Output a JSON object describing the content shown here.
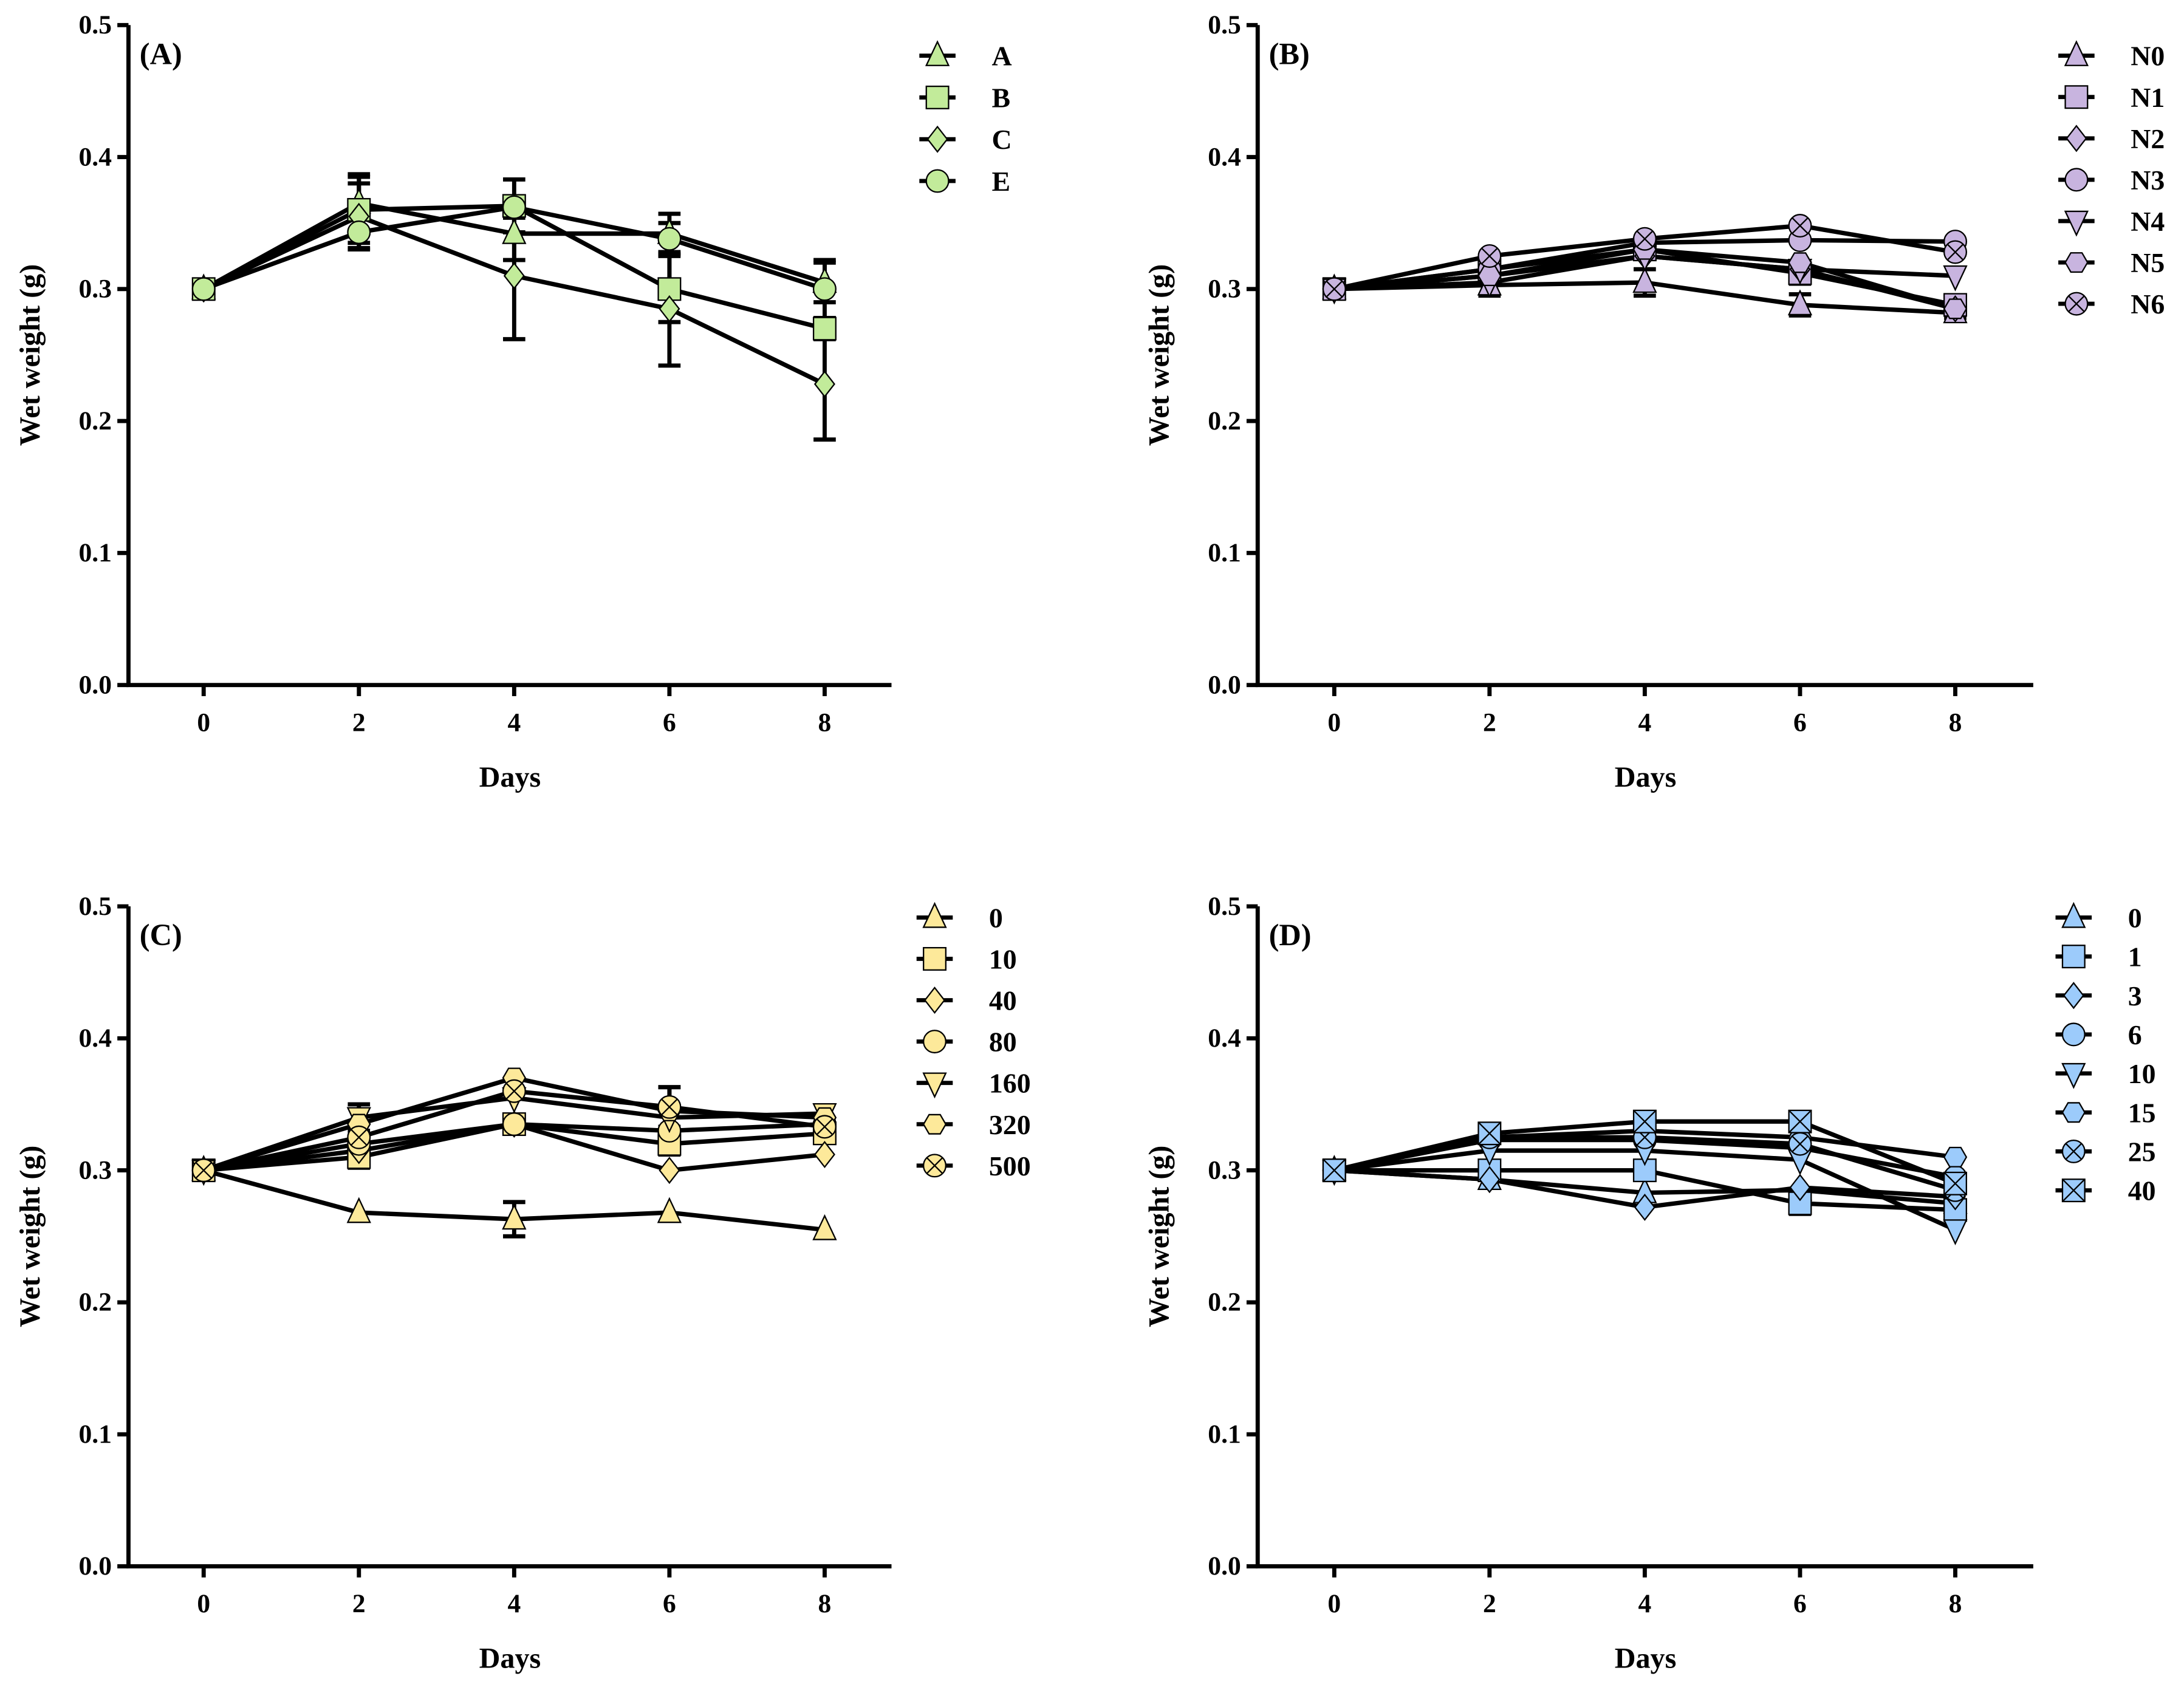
{
  "chart_data": [
    {
      "type": "line",
      "panel_label": "(A)",
      "xlabel": "Days",
      "ylabel": "Wet weight (g)",
      "x": [
        0,
        2,
        4,
        6,
        8
      ],
      "xticks": [
        "0",
        "2",
        "4",
        "6",
        "8"
      ],
      "yticks": [
        "0.0",
        "0.1",
        "0.2",
        "0.3",
        "0.4",
        "0.5"
      ],
      "ylim": [
        0,
        0.5
      ],
      "xlim": [
        -1,
        9
      ],
      "legend_position": "top-right",
      "color": "#c2eb9a",
      "series": [
        {
          "name": "A",
          "marker": "triangle",
          "values": [
            0.3,
            0.365,
            0.342,
            0.342,
            0.305
          ],
          "error": [
            0,
            0.022,
            0.02,
            0.015,
            0.015
          ]
        },
        {
          "name": "B",
          "marker": "square",
          "values": [
            0.3,
            0.36,
            0.363,
            0.3,
            0.27
          ],
          "error": [
            0,
            0.025,
            0.02,
            0.025,
            0.008
          ]
        },
        {
          "name": "C",
          "marker": "diamond",
          "values": [
            0.3,
            0.355,
            0.31,
            0.285,
            0.228
          ],
          "error": [
            0,
            0.025,
            0.048,
            0.043,
            0.042
          ]
        },
        {
          "name": "E",
          "marker": "circle",
          "values": [
            0.3,
            0.343,
            0.362,
            0.338,
            0.3
          ],
          "error": [
            0,
            0.012,
            0.008,
            0.012,
            0.022
          ]
        }
      ]
    },
    {
      "type": "line",
      "panel_label": "(B)",
      "xlabel": "Days",
      "ylabel": "Wet weight (g)",
      "x": [
        0,
        2,
        4,
        6,
        8
      ],
      "xticks": [
        "0",
        "2",
        "4",
        "6",
        "8"
      ],
      "yticks": [
        "0.0",
        "0.1",
        "0.2",
        "0.3",
        "0.4",
        "0.5"
      ],
      "ylim": [
        0,
        0.5
      ],
      "xlim": [
        -1,
        9
      ],
      "legend_position": "top-right",
      "color": "#c8b4df",
      "series": [
        {
          "name": "N0",
          "marker": "triangle",
          "values": [
            0.3,
            0.303,
            0.305,
            0.288,
            0.282
          ],
          "error": [
            0,
            0.008,
            0.01,
            0.008,
            0.004
          ]
        },
        {
          "name": "N1",
          "marker": "square",
          "values": [
            0.3,
            0.315,
            0.33,
            0.312,
            0.288
          ],
          "error": [
            0,
            0.005,
            0.006,
            0.008,
            0.004
          ]
        },
        {
          "name": "N2",
          "marker": "diamond",
          "values": [
            0.3,
            0.31,
            0.325,
            0.315,
            0.285
          ],
          "error": [
            0,
            0,
            0,
            0,
            0
          ]
        },
        {
          "name": "N3",
          "marker": "circle",
          "values": [
            0.3,
            0.315,
            0.335,
            0.337,
            0.336
          ],
          "error": [
            0,
            0,
            0,
            0,
            0
          ]
        },
        {
          "name": "N4",
          "marker": "down-triangle",
          "values": [
            0.3,
            0.305,
            0.325,
            0.315,
            0.31
          ],
          "error": [
            0,
            0,
            0,
            0,
            0
          ]
        },
        {
          "name": "N5",
          "marker": "hexagon",
          "values": [
            0.3,
            0.31,
            0.33,
            0.32,
            0.285
          ],
          "error": [
            0,
            0,
            0,
            0,
            0
          ]
        },
        {
          "name": "N6",
          "marker": "crossed-circle",
          "values": [
            0.3,
            0.325,
            0.338,
            0.348,
            0.328
          ],
          "error": [
            0,
            0,
            0,
            0,
            0
          ]
        }
      ]
    },
    {
      "type": "line",
      "panel_label": "(C)",
      "xlabel": "Days",
      "ylabel": "Wet weight (g)",
      "x": [
        0,
        2,
        4,
        6,
        8
      ],
      "xticks": [
        "0",
        "2",
        "4",
        "6",
        "8"
      ],
      "yticks": [
        "0.0",
        "0.1",
        "0.2",
        "0.3",
        "0.4",
        "0.5"
      ],
      "ylim": [
        0,
        0.5
      ],
      "xlim": [
        -1,
        9
      ],
      "legend_position": "top-right",
      "color": "#fde99a",
      "series": [
        {
          "name": "0",
          "marker": "triangle",
          "values": [
            0.3,
            0.268,
            0.263,
            0.268,
            0.255
          ],
          "error": [
            0,
            0,
            0.013,
            0,
            0
          ]
        },
        {
          "name": "10",
          "marker": "square",
          "values": [
            0.3,
            0.31,
            0.335,
            0.32,
            0.328
          ],
          "error": [
            0,
            0.008,
            0,
            0.008,
            0
          ]
        },
        {
          "name": "40",
          "marker": "diamond",
          "values": [
            0.3,
            0.315,
            0.335,
            0.3,
            0.312
          ],
          "error": [
            0,
            0,
            0,
            0,
            0
          ]
        },
        {
          "name": "80",
          "marker": "circle",
          "values": [
            0.3,
            0.32,
            0.335,
            0.33,
            0.335
          ],
          "error": [
            0,
            0,
            0,
            0,
            0
          ]
        },
        {
          "name": "160",
          "marker": "down-triangle",
          "values": [
            0.3,
            0.34,
            0.355,
            0.34,
            0.343
          ],
          "error": [
            0,
            0.01,
            0,
            0,
            0
          ]
        },
        {
          "name": "320",
          "marker": "hexagon",
          "values": [
            0.3,
            0.335,
            0.37,
            0.345,
            0.34
          ],
          "error": [
            0,
            0,
            0,
            0.018,
            0
          ]
        },
        {
          "name": "500",
          "marker": "crossed-circle",
          "values": [
            0.3,
            0.325,
            0.36,
            0.348,
            0.333
          ],
          "error": [
            0,
            0,
            0,
            0.015,
            0
          ]
        }
      ]
    },
    {
      "type": "line",
      "panel_label": "(D)",
      "xlabel": "Days",
      "ylabel": "Wet weight (g)",
      "x": [
        0,
        2,
        4,
        6,
        8
      ],
      "xticks": [
        "0",
        "2",
        "4",
        "6",
        "8"
      ],
      "yticks": [
        "0.0",
        "0.1",
        "0.2",
        "0.3",
        "0.4",
        "0.5"
      ],
      "ylim": [
        0,
        0.5
      ],
      "xlim": [
        -1,
        9
      ],
      "legend_position": "top-right",
      "color": "#9ccbfb",
      "series": [
        {
          "name": "0",
          "marker": "triangle",
          "values": [
            0.3,
            0.293,
            0.283,
            0.285,
            0.275
          ],
          "error": [
            0,
            0,
            0,
            0,
            0
          ]
        },
        {
          "name": "1",
          "marker": "square",
          "values": [
            0.3,
            0.3,
            0.3,
            0.275,
            0.27
          ],
          "error": [
            0,
            0,
            0,
            0.008,
            0
          ]
        },
        {
          "name": "3",
          "marker": "diamond",
          "values": [
            0.3,
            0.293,
            0.272,
            0.287,
            0.28
          ],
          "error": [
            0,
            0,
            0,
            0,
            0
          ]
        },
        {
          "name": "6",
          "marker": "circle",
          "values": [
            0.3,
            0.323,
            0.323,
            0.317,
            0.295
          ],
          "error": [
            0,
            0,
            0,
            0,
            0
          ]
        },
        {
          "name": "10",
          "marker": "down-triangle",
          "values": [
            0.3,
            0.315,
            0.315,
            0.308,
            0.255
          ],
          "error": [
            0,
            0,
            0,
            0,
            0
          ]
        },
        {
          "name": "15",
          "marker": "hexagon",
          "values": [
            0.3,
            0.325,
            0.33,
            0.325,
            0.31
          ],
          "error": [
            0,
            0,
            0,
            0,
            0
          ]
        },
        {
          "name": "25",
          "marker": "crossed-circle",
          "values": [
            0.3,
            0.325,
            0.325,
            0.32,
            0.285
          ],
          "error": [
            0,
            0,
            0,
            0,
            0
          ]
        },
        {
          "name": "40",
          "marker": "crossed-square",
          "values": [
            0.3,
            0.328,
            0.337,
            0.337,
            0.29
          ],
          "error": [
            0,
            0,
            0,
            0,
            0
          ]
        }
      ]
    }
  ]
}
